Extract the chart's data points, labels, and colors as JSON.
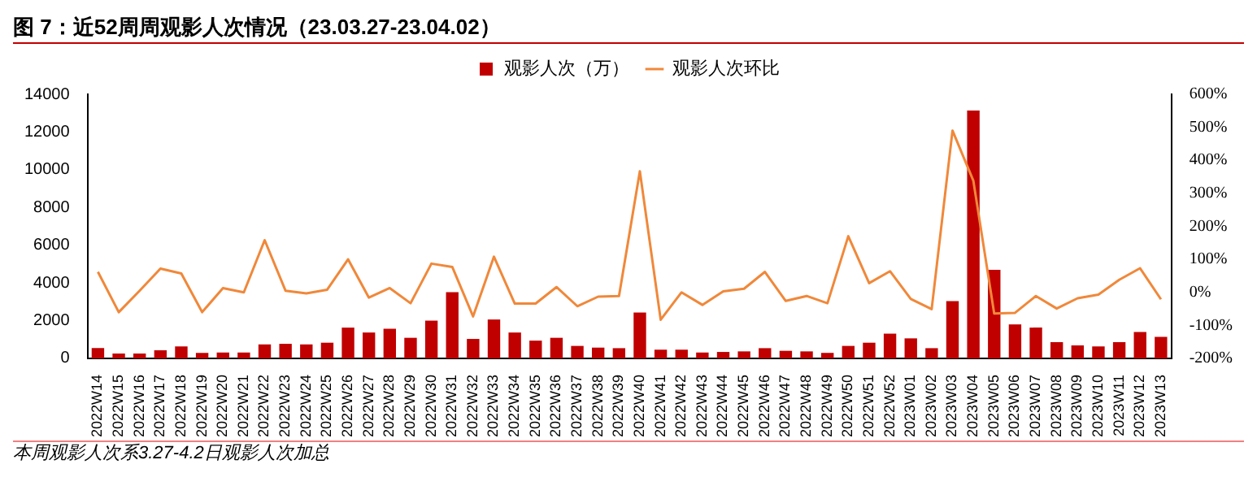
{
  "chart_data": {
    "type": "bar",
    "title": "图 7：近52周周观影人次情况（23.03.27-23.04.02）",
    "categories": [
      "2022W14",
      "2022W15",
      "2022W16",
      "2022W17",
      "2022W18",
      "2022W19",
      "2022W20",
      "2022W21",
      "2022W22",
      "2022W23",
      "2022W24",
      "2022W25",
      "2022W26",
      "2022W27",
      "2022W28",
      "2022W29",
      "2022W30",
      "2022W31",
      "2022W32",
      "2022W33",
      "2022W34",
      "2022W35",
      "2022W36",
      "2022W37",
      "2022W38",
      "2022W39",
      "2022W40",
      "2022W41",
      "2022W42",
      "2022W43",
      "2022W44",
      "2022W45",
      "2022W46",
      "2022W47",
      "2022W48",
      "2022W49",
      "2022W50",
      "2022W51",
      "2022W52",
      "2023W01",
      "2023W02",
      "2023W03",
      "2023W04",
      "2023W05",
      "2023W06",
      "2023W07",
      "2023W08",
      "2023W09",
      "2023W10",
      "2023W11",
      "2023W12",
      "2023W13"
    ],
    "series": [
      {
        "name": "观影人次（万）",
        "color": "#c00000",
        "values": [
          550,
          260,
          260,
          430,
          630,
          290,
          310,
          310,
          740,
          770,
          740,
          830,
          1630,
          1370,
          1570,
          1090,
          2000,
          3510,
          1030,
          2060,
          1370,
          940,
          1090,
          660,
          570,
          540,
          2430,
          460,
          460,
          310,
          340,
          370,
          540,
          400,
          370,
          290,
          660,
          830,
          1310,
          1060,
          540,
          3030,
          13140,
          4690,
          1800,
          1630,
          860,
          690,
          630,
          860,
          1400,
          1140
        ]
      },
      {
        "name": "观影人次环比",
        "type": "line",
        "axis": "y2",
        "color": "#f0883a",
        "values": [
          62,
          -60,
          5,
          72,
          57,
          -60,
          13,
          0,
          158,
          5,
          -3,
          8,
          100,
          -16,
          13,
          -33,
          87,
          77,
          -73,
          108,
          -34,
          -34,
          16,
          -42,
          -13,
          -11,
          367,
          -83,
          0,
          -38,
          3,
          11,
          62,
          -26,
          -11,
          -33,
          170,
          28,
          64,
          -20,
          -51,
          490,
          338,
          -64,
          -62,
          -11,
          -49,
          -18,
          -7,
          38,
          73,
          -21
        ]
      }
    ],
    "ylim": [
      0,
      14000
    ],
    "yticks": [
      0,
      2000,
      4000,
      6000,
      8000,
      10000,
      12000,
      14000
    ],
    "y2lim": [
      -200,
      600
    ],
    "y2ticks": [
      {
        "value": -200,
        "label": "-200%"
      },
      {
        "value": -100,
        "label": "-100%"
      },
      {
        "value": 0,
        "label": "0%"
      },
      {
        "value": 100,
        "label": "100%"
      },
      {
        "value": 200,
        "label": "200%"
      },
      {
        "value": 300,
        "label": "300%"
      },
      {
        "value": 400,
        "label": "400%"
      },
      {
        "value": 500,
        "label": "500%"
      },
      {
        "value": 600,
        "label": "600%"
      }
    ],
    "legend": "top",
    "grid": false,
    "marker": "none",
    "line_style": "solid",
    "annotations": [
      "本周观影人次系3.27-4.2日观影人次加总"
    ]
  }
}
